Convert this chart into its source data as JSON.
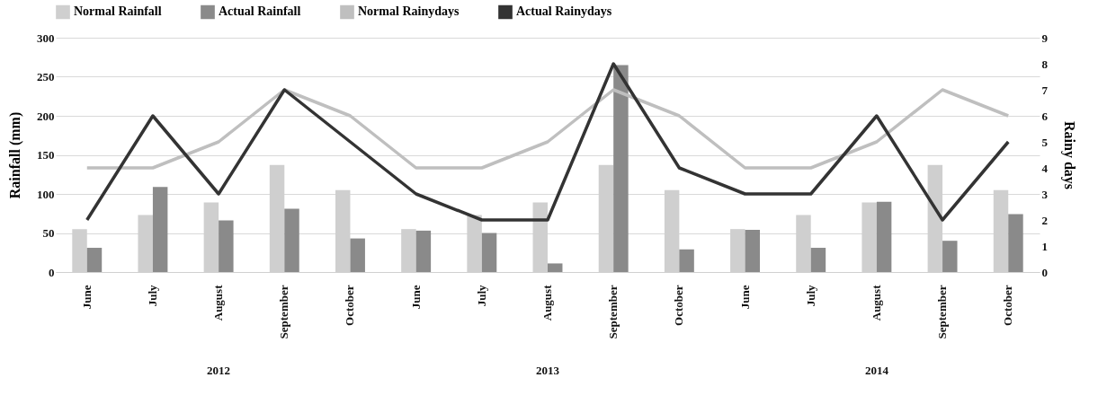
{
  "chart_data": {
    "type": "bar",
    "ylabel": "Rainfall (mm)",
    "y2label": "Rainy days",
    "categories": [
      "June",
      "July",
      "August",
      "September",
      "October",
      "June",
      "July",
      "August",
      "September",
      "October",
      "June",
      "July",
      "August",
      "September",
      "October"
    ],
    "series": [
      {
        "name": "Normal Rainfall",
        "color": "#cfcfcf",
        "values": [
          55,
          73,
          89,
          137,
          105,
          55,
          73,
          89,
          137,
          105,
          55,
          73,
          89,
          137,
          105
        ]
      },
      {
        "name": "Actual Rainfall",
        "color": "#8a8a8a",
        "values": [
          31,
          109,
          66,
          81,
          43,
          53,
          50,
          11,
          265,
          29,
          54,
          31,
          90,
          40,
          74
        ]
      },
      {
        "name": "Normal Rainydays",
        "type": "line",
        "axis": "y2",
        "color": "#bfbfbf",
        "values": [
          4,
          4,
          5,
          7,
          6,
          4,
          4,
          5,
          7,
          6,
          4,
          4,
          5,
          7,
          6
        ]
      },
      {
        "name": "Actual Rainydays",
        "type": "line",
        "axis": "y2",
        "color": "#333333",
        "values": [
          2,
          6,
          3,
          7,
          5,
          3,
          2,
          2,
          8,
          4,
          3,
          3,
          6,
          2,
          5
        ]
      }
    ],
    "ylim": [
      0,
      300
    ],
    "yticks": [
      0,
      50,
      100,
      150,
      200,
      250,
      300
    ],
    "y2lim": [
      0,
      9
    ],
    "y2ticks": [
      0,
      1,
      2,
      3,
      4,
      5,
      6,
      7,
      8,
      9
    ],
    "annotations": [
      "2012",
      "2013",
      "2014"
    ],
    "grid": "y",
    "legend": "top"
  }
}
